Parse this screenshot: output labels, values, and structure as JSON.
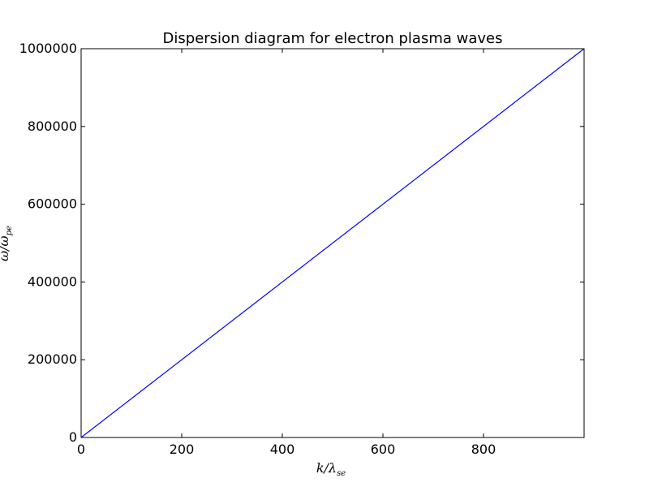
{
  "chart_data": {
    "type": "line",
    "title": "Dispersion diagram for electron plasma waves",
    "xlabel": {
      "main": "k/λ",
      "sub": "se"
    },
    "ylabel": {
      "main": "ω/ω",
      "sub": "pe"
    },
    "xlim": [
      0,
      1000
    ],
    "ylim": [
      0,
      1000000
    ],
    "xticks": [
      0,
      200,
      400,
      600,
      800
    ],
    "yticks": [
      0,
      200000,
      400000,
      600000,
      800000,
      1000000
    ],
    "xtick_labels": [
      "0",
      "200",
      "400",
      "600",
      "800"
    ],
    "ytick_labels": [
      "0",
      "200000",
      "400000",
      "600000",
      "800000",
      "1000000"
    ],
    "grid": false,
    "series": [
      {
        "x": [
          0,
          1000
        ],
        "y": [
          0,
          1000000
        ],
        "color": "#0000ff"
      }
    ]
  }
}
